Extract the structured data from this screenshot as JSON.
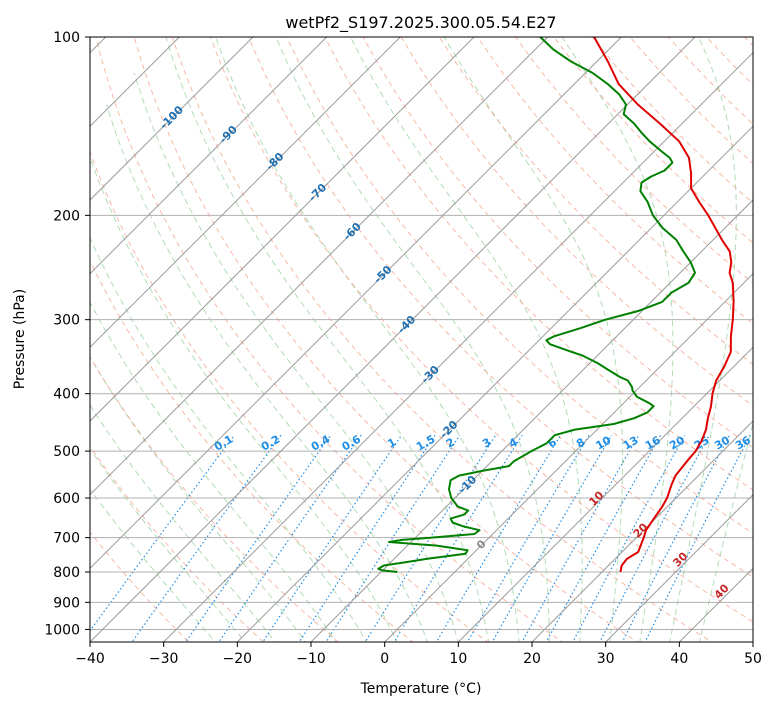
{
  "chart_data": {
    "type": "skew-t log-p sounding",
    "title": "wetPf2_S197.2025.300.05.54.E27",
    "xlabel": "Temperature (°C)",
    "ylabel": "Pressure (hPa)",
    "xlim": [
      -40,
      50
    ],
    "ylim_hPa": [
      1050,
      100
    ],
    "y_scale": "log",
    "x_ticks": [
      -40,
      -30,
      -20,
      -10,
      0,
      10,
      20,
      30,
      40,
      50
    ],
    "y_ticks": [
      100,
      200,
      300,
      400,
      500,
      600,
      700,
      800,
      900,
      1000
    ],
    "grid": true,
    "colors": {
      "temperature": "#e00000",
      "dewpoint": "#008000",
      "isotherm": "#9a9a9a",
      "dry_adiabat": "#f6a08a",
      "moist_adiabat": "#9fd3a0",
      "mixing_ratio": "#1f8ee6",
      "isotherm_label": "#1f6fb0",
      "dry_adiabat_label": "#c62828"
    },
    "isotherm_labels": [
      "-100",
      "-90",
      "-80",
      "-70",
      "-60",
      "-50",
      "-40",
      "-30",
      "-20",
      "-10",
      "0"
    ],
    "dry_adiabat_labels": [
      "10",
      "20",
      "30",
      "40"
    ],
    "mixing_ratio_labels": [
      "0.1",
      "0.2",
      "0.4",
      "0.6",
      "1",
      "1.5",
      "2",
      "3",
      "4",
      "6",
      "8",
      "10",
      "13",
      "16",
      "20",
      "25",
      "30",
      "36"
    ],
    "series": [
      {
        "name": "Temperature",
        "points": [
          [
            800,
            22.5
          ],
          [
            780,
            21.8
          ],
          [
            760,
            21.6
          ],
          [
            740,
            22.2
          ],
          [
            720,
            21.6
          ],
          [
            700,
            21.0
          ],
          [
            680,
            20.3
          ],
          [
            650,
            19.8
          ],
          [
            620,
            19.3
          ],
          [
            600,
            18.8
          ],
          [
            570,
            17.6
          ],
          [
            550,
            16.9
          ],
          [
            520,
            16.5
          ],
          [
            500,
            16.3
          ],
          [
            480,
            15.7
          ],
          [
            460,
            14.8
          ],
          [
            440,
            13.5
          ],
          [
            420,
            12.3
          ],
          [
            400,
            10.8
          ],
          [
            380,
            9.5
          ],
          [
            360,
            8.7
          ],
          [
            340,
            7.6
          ],
          [
            320,
            5.5
          ],
          [
            300,
            3.5
          ],
          [
            280,
            1.2
          ],
          [
            260,
            -1.5
          ],
          [
            250,
            -3.3
          ],
          [
            240,
            -4.5
          ],
          [
            230,
            -6.2
          ],
          [
            220,
            -8.8
          ],
          [
            200,
            -14.0
          ],
          [
            190,
            -17.0
          ],
          [
            180,
            -20.0
          ],
          [
            170,
            -22.0
          ],
          [
            160,
            -24.4
          ],
          [
            150,
            -28.0
          ],
          [
            140,
            -33.0
          ],
          [
            130,
            -38.6
          ],
          [
            120,
            -44.0
          ],
          [
            110,
            -48.5
          ],
          [
            100,
            -53.7
          ]
        ]
      },
      {
        "name": "Dewpoint",
        "points": [
          [
            800,
            -7.8
          ],
          [
            795,
            -10.0
          ],
          [
            790,
            -10.8
          ],
          [
            780,
            -10.5
          ],
          [
            770,
            -8.0
          ],
          [
            760,
            -5.5
          ],
          [
            745,
            -1.0
          ],
          [
            735,
            -1.2
          ],
          [
            722,
            -6.0
          ],
          [
            712,
            -13.0
          ],
          [
            706,
            -11.5
          ],
          [
            700,
            -8.0
          ],
          [
            690,
            -2.5
          ],
          [
            680,
            -2.3
          ],
          [
            670,
            -5.0
          ],
          [
            660,
            -7.0
          ],
          [
            650,
            -7.8
          ],
          [
            640,
            -6.5
          ],
          [
            630,
            -6.5
          ],
          [
            620,
            -8.5
          ],
          [
            600,
            -10.5
          ],
          [
            580,
            -12.0
          ],
          [
            560,
            -13.0
          ],
          [
            550,
            -12.5
          ],
          [
            540,
            -10.0
          ],
          [
            530,
            -7.0
          ],
          [
            520,
            -7.0
          ],
          [
            510,
            -6.5
          ],
          [
            500,
            -6.0
          ],
          [
            485,
            -5.0
          ],
          [
            470,
            -5.0
          ],
          [
            460,
            -3.0
          ],
          [
            450,
            1.5
          ],
          [
            440,
            3.5
          ],
          [
            430,
            4.5
          ],
          [
            420,
            4.5
          ],
          [
            415,
            3.5
          ],
          [
            405,
            1.0
          ],
          [
            395,
            -0.5
          ],
          [
            390,
            -1.0
          ],
          [
            380,
            -2.5
          ],
          [
            375,
            -4.0
          ],
          [
            365,
            -6.5
          ],
          [
            355,
            -9.0
          ],
          [
            345,
            -12.0
          ],
          [
            340,
            -14.0
          ],
          [
            330,
            -18.0
          ],
          [
            325,
            -19.0
          ],
          [
            320,
            -18.5
          ],
          [
            310,
            -16.0
          ],
          [
            300,
            -13.8
          ],
          [
            290,
            -10.5
          ],
          [
            280,
            -8.5
          ],
          [
            270,
            -8.5
          ],
          [
            260,
            -7.5
          ],
          [
            250,
            -8.0
          ],
          [
            240,
            -10.0
          ],
          [
            230,
            -12.5
          ],
          [
            220,
            -15.0
          ],
          [
            210,
            -18.5
          ],
          [
            200,
            -21.5
          ],
          [
            190,
            -24.0
          ],
          [
            182,
            -26.5
          ],
          [
            176,
            -27.5
          ],
          [
            172,
            -27.0
          ],
          [
            168,
            -26.0
          ],
          [
            163,
            -26.0
          ],
          [
            160,
            -27.0
          ],
          [
            156,
            -29.0
          ],
          [
            150,
            -32.0
          ],
          [
            145,
            -34.3
          ],
          [
            140,
            -36.5
          ],
          [
            135,
            -39.2
          ],
          [
            130,
            -40.2
          ],
          [
            125,
            -42.5
          ],
          [
            120,
            -45.5
          ],
          [
            115,
            -49.0
          ],
          [
            110,
            -53.5
          ],
          [
            105,
            -57.5
          ],
          [
            100,
            -61.0
          ]
        ]
      }
    ]
  }
}
